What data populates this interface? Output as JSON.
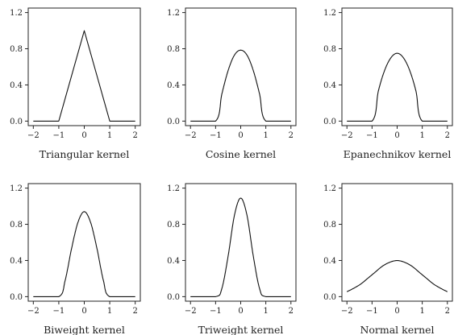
{
  "chart_data": [
    {
      "type": "line",
      "title": "Triangular kernel",
      "kernel": "triangular",
      "xlim": [
        -2.2,
        2.2
      ],
      "ylim": [
        -0.05,
        1.25
      ],
      "xticks": [
        -2,
        -1,
        0,
        1,
        2
      ],
      "xtick_labels": [
        "−2",
        "−1",
        "0",
        "1",
        "2"
      ],
      "yticks": [
        0.0,
        0.4,
        0.8,
        1.2
      ],
      "ytick_labels": [
        "0.0",
        "0.4",
        "0.8",
        "1.2"
      ],
      "x": [
        -2,
        -1,
        0,
        1,
        2
      ],
      "y": [
        0,
        0,
        1,
        0,
        0
      ]
    },
    {
      "type": "line",
      "title": "Cosine kernel",
      "kernel": "cosine",
      "xlim": [
        -2.2,
        2.2
      ],
      "ylim": [
        -0.05,
        1.25
      ],
      "xticks": [
        -2,
        -1,
        0,
        1,
        2
      ],
      "xtick_labels": [
        "−2",
        "−1",
        "0",
        "1",
        "2"
      ],
      "yticks": [
        0.0,
        0.4,
        0.8,
        1.2
      ],
      "ytick_labels": [
        "0.0",
        "0.4",
        "0.8",
        "1.2"
      ],
      "x": [
        -2,
        -1,
        -0.75,
        -0.5,
        -0.25,
        0,
        0.25,
        0.5,
        0.75,
        1,
        2
      ],
      "y": [
        0,
        0,
        0.3,
        0.56,
        0.73,
        0.785,
        0.73,
        0.56,
        0.3,
        0,
        0
      ]
    },
    {
      "type": "line",
      "title": "Epanechnikov kernel",
      "kernel": "epanechnikov",
      "xlim": [
        -2.2,
        2.2
      ],
      "ylim": [
        -0.05,
        1.25
      ],
      "xticks": [
        -2,
        -1,
        0,
        1,
        2
      ],
      "xtick_labels": [
        "−2",
        "−1",
        "0",
        "1",
        "2"
      ],
      "yticks": [
        0.0,
        0.4,
        0.8,
        1.2
      ],
      "ytick_labels": [
        "0.0",
        "0.4",
        "0.8",
        "1.2"
      ],
      "x": [
        -2,
        -1,
        -0.75,
        -0.5,
        -0.25,
        0,
        0.25,
        0.5,
        0.75,
        1,
        2
      ],
      "y": [
        0,
        0,
        0.33,
        0.56,
        0.7,
        0.75,
        0.7,
        0.56,
        0.33,
        0,
        0
      ]
    },
    {
      "type": "line",
      "title": "Biweight kernel",
      "kernel": "biweight",
      "xlim": [
        -2.2,
        2.2
      ],
      "ylim": [
        -0.05,
        1.25
      ],
      "xticks": [
        -2,
        -1,
        0,
        1,
        2
      ],
      "xtick_labels": [
        "−2",
        "−1",
        "0",
        "1",
        "2"
      ],
      "yticks": [
        0.0,
        0.4,
        0.8,
        1.2
      ],
      "ytick_labels": [
        "0.0",
        "0.4",
        "0.8",
        "1.2"
      ],
      "x": [
        -2,
        -1,
        -0.75,
        -0.5,
        -0.25,
        0,
        0.25,
        0.5,
        0.75,
        1,
        2
      ],
      "y": [
        0,
        0,
        0.18,
        0.53,
        0.82,
        0.94,
        0.82,
        0.53,
        0.18,
        0,
        0
      ]
    },
    {
      "type": "line",
      "title": "Triweight kernel",
      "kernel": "triweight",
      "xlim": [
        -2.2,
        2.2
      ],
      "ylim": [
        -0.05,
        1.25
      ],
      "xticks": [
        -2,
        -1,
        0,
        1,
        2
      ],
      "xtick_labels": [
        "−2",
        "−1",
        "0",
        "1",
        "2"
      ],
      "yticks": [
        0.0,
        0.4,
        0.8,
        1.2
      ],
      "ytick_labels": [
        "0.0",
        "0.4",
        "0.8",
        "1.2"
      ],
      "x": [
        -2,
        -1,
        -0.75,
        -0.5,
        -0.25,
        0,
        0.25,
        0.5,
        0.75,
        1,
        2
      ],
      "y": [
        0,
        0,
        0.09,
        0.45,
        0.9,
        1.09,
        0.9,
        0.45,
        0.09,
        0,
        0
      ]
    },
    {
      "type": "line",
      "title": "Normal kernel",
      "kernel": "normal",
      "xlim": [
        -2.2,
        2.2
      ],
      "ylim": [
        -0.05,
        1.25
      ],
      "xticks": [
        -2,
        -1,
        0,
        1,
        2
      ],
      "xtick_labels": [
        "−2",
        "−1",
        "0",
        "1",
        "2"
      ],
      "yticks": [
        0.0,
        0.4,
        0.8,
        1.2
      ],
      "ytick_labels": [
        "0.0",
        "0.4",
        "0.8",
        "1.2"
      ],
      "x": [
        -2,
        -1.5,
        -1,
        -0.5,
        0,
        0.5,
        1,
        1.5,
        2
      ],
      "y": [
        0.054,
        0.13,
        0.242,
        0.352,
        0.399,
        0.352,
        0.242,
        0.13,
        0.054
      ]
    }
  ]
}
